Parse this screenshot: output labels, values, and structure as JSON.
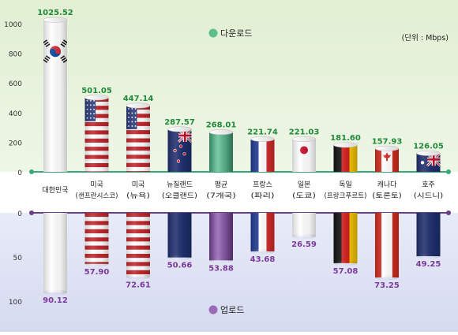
{
  "chart_data": [
    {
      "type": "bar",
      "title": "다운로드",
      "unit_note": "(단위 : Mbps)",
      "ylim": [
        0,
        1000
      ],
      "yticks": [
        0,
        200,
        400,
        600,
        800,
        1000
      ],
      "categories": [
        {
          "l1": "대한민국",
          "l2": ""
        },
        {
          "l1": "미국",
          "l2": "(샌프란시스코)"
        },
        {
          "l1": "미국",
          "l2": "(뉴욕)"
        },
        {
          "l1": "뉴질랜드",
          "l2": "(오클랜드)"
        },
        {
          "l1": "평균",
          "l2": "(7개국)"
        },
        {
          "l1": "프랑스",
          "l2": "(파리)"
        },
        {
          "l1": "일본",
          "l2": "(도쿄)"
        },
        {
          "l1": "독일",
          "l2": "(프랑크푸르트)"
        },
        {
          "l1": "캐나다",
          "l2": "(토론토)"
        },
        {
          "l1": "호주",
          "l2": "(시드니)"
        }
      ],
      "values": [
        1025.52,
        501.05,
        447.14,
        287.57,
        268.01,
        221.74,
        221.03,
        181.6,
        157.93,
        126.05
      ],
      "value_labels": [
        "1025.52",
        "501.05",
        "447.14",
        "287.57",
        "268.01",
        "221.74",
        "221.03",
        "181.60",
        "157.93",
        "126.05"
      ],
      "flags": [
        "korea",
        "usa",
        "usa",
        "new-zealand",
        "average",
        "france",
        "japan",
        "germany",
        "canada",
        "australia"
      ],
      "colors": {
        "label": "#1f8a3a",
        "legend": "#5bbf8e",
        "bg": "#e4f0d6"
      }
    },
    {
      "type": "bar",
      "title": "업로드",
      "ylim": [
        0,
        100
      ],
      "yticks": [
        0,
        50,
        100
      ],
      "values": [
        90.12,
        57.9,
        72.61,
        50.66,
        53.88,
        43.68,
        26.59,
        57.08,
        73.25,
        49.25
      ],
      "value_labels": [
        "90.12",
        "57.90",
        "72.61",
        "50.66",
        "53.88",
        "43.68",
        "26.59",
        "57.08",
        "73.25",
        "49.25"
      ],
      "colors": {
        "label": "#7a3a9a",
        "legend": "#9a6bb8",
        "bg": "#dcdff3"
      }
    }
  ]
}
